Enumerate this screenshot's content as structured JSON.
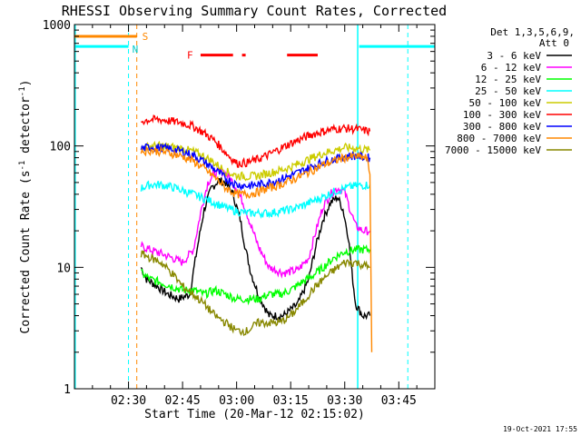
{
  "chart_data": {
    "type": "line",
    "title": "RHESSI Observing Summary Count Rates, Corrected",
    "xlabel": "Start Time (20-Mar-12 02:15:02)",
    "ylabel": "Corrected Count Rate (s⁻¹ detector⁻¹)",
    "ylabel_parts": {
      "main": "Corrected Count Rate (s",
      "sup1": "-1",
      "mid": " detector",
      "sup2": "-1",
      "end": ")"
    },
    "yscale": "log",
    "ylim": [
      1,
      1000
    ],
    "xlim_min": [
      15,
      115
    ],
    "x_ticks": [
      {
        "v": 30,
        "label": "02:30"
      },
      {
        "v": 45,
        "label": "02:45"
      },
      {
        "v": 60,
        "label": "03:00"
      },
      {
        "v": 75,
        "label": "03:15"
      },
      {
        "v": 90,
        "label": "03:30"
      },
      {
        "v": 105,
        "label": "03:45"
      }
    ],
    "y_ticks": [
      {
        "v": 1,
        "label": "1"
      },
      {
        "v": 10,
        "label": "10"
      },
      {
        "v": 100,
        "label": "100"
      },
      {
        "v": 1000,
        "label": "1000"
      }
    ],
    "legend": {
      "header1": "Det 1,3,5,6,9,",
      "header2": "Att 0",
      "placement": "right"
    },
    "series": [
      {
        "name": "3 - 6 keV",
        "color": "#000000",
        "points": [
          [
            33.5,
            10
          ],
          [
            35,
            8
          ],
          [
            38,
            7
          ],
          [
            41,
            6
          ],
          [
            44,
            5.5
          ],
          [
            47,
            6
          ],
          [
            49,
            14
          ],
          [
            51,
            30
          ],
          [
            53,
            45
          ],
          [
            55,
            52
          ],
          [
            57,
            50
          ],
          [
            59,
            40
          ],
          [
            61,
            25
          ],
          [
            62.5,
            14
          ],
          [
            64,
            9
          ],
          [
            66,
            6
          ],
          [
            69,
            4
          ],
          [
            73,
            4
          ],
          [
            77,
            5
          ],
          [
            80,
            8
          ],
          [
            82,
            15
          ],
          [
            84,
            25
          ],
          [
            86,
            34
          ],
          [
            88,
            38
          ],
          [
            89.5,
            30
          ],
          [
            91,
            18
          ],
          [
            92,
            9
          ],
          [
            93,
            5
          ],
          [
            95,
            4
          ],
          [
            97,
            4
          ]
        ]
      },
      {
        "name": "6 - 12 keV",
        "color": "#ff00ff",
        "points": [
          [
            33.5,
            15
          ],
          [
            36,
            14
          ],
          [
            39,
            13
          ],
          [
            42,
            12
          ],
          [
            45,
            11
          ],
          [
            48,
            14
          ],
          [
            50,
            28
          ],
          [
            52,
            50
          ],
          [
            54,
            60
          ],
          [
            56,
            62
          ],
          [
            58,
            55
          ],
          [
            60,
            45
          ],
          [
            62,
            33
          ],
          [
            64,
            22
          ],
          [
            66,
            15
          ],
          [
            69,
            10
          ],
          [
            73,
            9
          ],
          [
            77,
            9.5
          ],
          [
            80,
            12
          ],
          [
            82,
            20
          ],
          [
            84,
            32
          ],
          [
            86,
            40
          ],
          [
            88,
            45
          ],
          [
            90,
            42
          ],
          [
            91.5,
            30
          ],
          [
            93,
            22
          ],
          [
            95,
            20
          ],
          [
            97,
            20
          ]
        ]
      },
      {
        "name": "12 - 25 keV",
        "color": "#00ff00",
        "points": [
          [
            33.5,
            9
          ],
          [
            36,
            8
          ],
          [
            39,
            7.5
          ],
          [
            42,
            7
          ],
          [
            45,
            6.5
          ],
          [
            48,
            6.5
          ],
          [
            51,
            6
          ],
          [
            54,
            6.5
          ],
          [
            57,
            6
          ],
          [
            60,
            5.5
          ],
          [
            63,
            5.5
          ],
          [
            66,
            5.5
          ],
          [
            69,
            6
          ],
          [
            72,
            6
          ],
          [
            75,
            6.5
          ],
          [
            78,
            7.5
          ],
          [
            81,
            8.5
          ],
          [
            84,
            10
          ],
          [
            87,
            12
          ],
          [
            90,
            13.5
          ],
          [
            93,
            14
          ],
          [
            97,
            14
          ]
        ]
      },
      {
        "name": "25 - 50 keV",
        "color": "#00ffff",
        "points": [
          [
            33.5,
            45
          ],
          [
            36,
            48
          ],
          [
            39,
            48
          ],
          [
            42,
            46
          ],
          [
            45,
            43
          ],
          [
            48,
            40
          ],
          [
            51,
            37
          ],
          [
            54,
            34
          ],
          [
            57,
            31
          ],
          [
            60,
            29
          ],
          [
            63,
            28
          ],
          [
            66,
            28
          ],
          [
            69,
            28
          ],
          [
            72,
            29
          ],
          [
            75,
            30
          ],
          [
            78,
            32
          ],
          [
            81,
            35
          ],
          [
            84,
            38
          ],
          [
            87,
            42
          ],
          [
            90,
            45
          ],
          [
            93,
            47
          ],
          [
            97,
            48
          ]
        ]
      },
      {
        "name": "50 - 100 keV",
        "color": "#cccc00",
        "points": [
          [
            33.5,
            95
          ],
          [
            36,
            100
          ],
          [
            39,
            100
          ],
          [
            42,
            98
          ],
          [
            45,
            95
          ],
          [
            48,
            90
          ],
          [
            51,
            82
          ],
          [
            54,
            72
          ],
          [
            57,
            62
          ],
          [
            60,
            57
          ],
          [
            63,
            56
          ],
          [
            66,
            57
          ],
          [
            69,
            60
          ],
          [
            72,
            63
          ],
          [
            75,
            67
          ],
          [
            78,
            73
          ],
          [
            81,
            80
          ],
          [
            84,
            87
          ],
          [
            87,
            92
          ],
          [
            90,
            97
          ],
          [
            93,
            96
          ],
          [
            97,
            92
          ]
        ]
      },
      {
        "name": "100 - 300 keV",
        "color": "#ff0000",
        "points": [
          [
            33.5,
            160
          ],
          [
            36,
            165
          ],
          [
            39,
            165
          ],
          [
            42,
            160
          ],
          [
            45,
            155
          ],
          [
            48,
            145
          ],
          [
            51,
            128
          ],
          [
            54,
            110
          ],
          [
            57,
            88
          ],
          [
            60,
            72
          ],
          [
            63,
            73
          ],
          [
            66,
            78
          ],
          [
            69,
            85
          ],
          [
            72,
            95
          ],
          [
            75,
            105
          ],
          [
            78,
            115
          ],
          [
            81,
            125
          ],
          [
            84,
            132
          ],
          [
            87,
            138
          ],
          [
            90,
            140
          ],
          [
            93,
            138
          ],
          [
            97,
            132
          ]
        ]
      },
      {
        "name": "300 - 800 keV",
        "color": "#0000ff",
        "points": [
          [
            33.5,
            95
          ],
          [
            36,
            98
          ],
          [
            39,
            97
          ],
          [
            42,
            94
          ],
          [
            45,
            90
          ],
          [
            48,
            84
          ],
          [
            51,
            74
          ],
          [
            54,
            64
          ],
          [
            57,
            54
          ],
          [
            60,
            48
          ],
          [
            63,
            47
          ],
          [
            66,
            48
          ],
          [
            69,
            50
          ],
          [
            72,
            53
          ],
          [
            75,
            57
          ],
          [
            78,
            62
          ],
          [
            81,
            68
          ],
          [
            84,
            74
          ],
          [
            87,
            78
          ],
          [
            90,
            82
          ],
          [
            93,
            83
          ],
          [
            97,
            80
          ]
        ]
      },
      {
        "name": "800 - 7000 keV",
        "color": "#ff8800",
        "points": [
          [
            33.5,
            90
          ],
          [
            36,
            92
          ],
          [
            39,
            90
          ],
          [
            42,
            87
          ],
          [
            45,
            82
          ],
          [
            48,
            75
          ],
          [
            51,
            65
          ],
          [
            54,
            55
          ],
          [
            57,
            45
          ],
          [
            60,
            40
          ],
          [
            63,
            40
          ],
          [
            66,
            42
          ],
          [
            69,
            45
          ],
          [
            72,
            48
          ],
          [
            75,
            52
          ],
          [
            78,
            57
          ],
          [
            81,
            63
          ],
          [
            84,
            70
          ],
          [
            87,
            75
          ],
          [
            90,
            80
          ],
          [
            93,
            82
          ],
          [
            96,
            80
          ],
          [
            97,
            60
          ],
          [
            97.5,
            2
          ]
        ]
      },
      {
        "name": "7000 - 15000 keV",
        "color": "#888800",
        "points": [
          [
            33.5,
            13
          ],
          [
            36,
            12
          ],
          [
            39,
            11
          ],
          [
            42,
            9
          ],
          [
            45,
            7
          ],
          [
            48,
            6
          ],
          [
            51,
            5
          ],
          [
            54,
            4
          ],
          [
            57,
            3.5
          ],
          [
            60,
            3
          ],
          [
            63,
            3
          ],
          [
            66,
            3.5
          ],
          [
            69,
            3.5
          ],
          [
            72,
            3.5
          ],
          [
            75,
            4
          ],
          [
            78,
            5
          ],
          [
            81,
            6.5
          ],
          [
            84,
            8
          ],
          [
            87,
            9.5
          ],
          [
            90,
            11
          ],
          [
            93,
            11
          ],
          [
            97,
            10
          ]
        ]
      }
    ],
    "annotations": {
      "markers": [
        {
          "text": "S",
          "color": "#ff8800"
        },
        {
          "text": "N",
          "color": "#00cccc"
        },
        {
          "text": "F",
          "color": "#ff0000"
        }
      ],
      "s_bar_min": [
        15,
        32.3
      ],
      "s_bar_level": 800,
      "n_bars": [
        {
          "min": [
            15,
            30
          ],
          "level": 660
        },
        {
          "min": [
            94,
            115
          ],
          "level": 660
        }
      ],
      "f_bars": [
        {
          "min": [
            50,
            59
          ]
        },
        {
          "min": [
            61.5,
            62.5
          ]
        },
        {
          "min": [
            74,
            82.5
          ]
        }
      ],
      "f_level": 560,
      "vlines_solid_cyan_min": [
        15.2,
        93.6
      ],
      "vlines_dashed_cyan_min": [
        30,
        107.5
      ],
      "vline_dashed_orange_min": 32.3
    },
    "timestamp": "19-Oct-2021 17:55",
    "grid": false
  }
}
